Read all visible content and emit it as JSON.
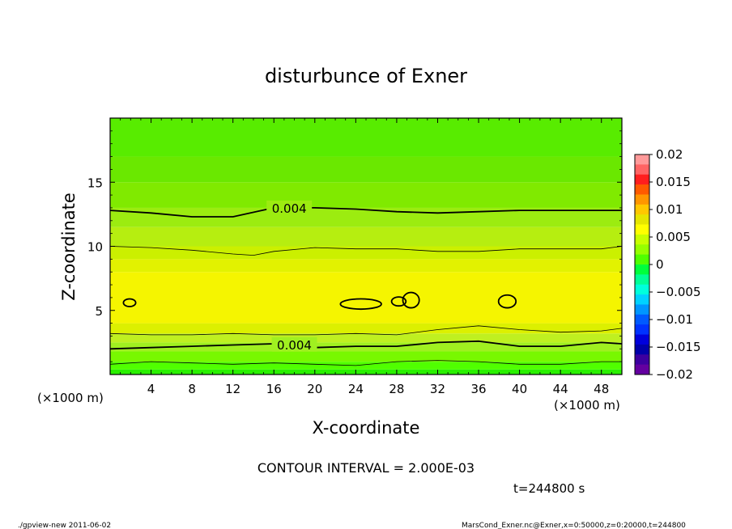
{
  "chart_data": {
    "type": "heatmap",
    "title": "disturbunce of Exner",
    "xlabel": "X-coordinate",
    "ylabel": "Z-coordinate",
    "x_unit": "(×1000 m)",
    "y_unit": "(×1000 m)",
    "xlim": [
      0,
      50
    ],
    "ylim": [
      0,
      20
    ],
    "x_ticks": [
      "4",
      "8",
      "12",
      "16",
      "20",
      "24",
      "28",
      "32",
      "36",
      "40",
      "44",
      "48"
    ],
    "y_ticks": [
      "5",
      "10",
      "15"
    ],
    "contour_labels": [
      "0.004",
      "0.004"
    ],
    "contour_interval_text": "CONTOUR INTERVAL = 2.000E-03",
    "time_text": "t=244800 s",
    "colorbar": {
      "ticks": [
        "0.02",
        "0.015",
        "0.01",
        "0.005",
        "0",
        "−0.005",
        "−0.01",
        "−0.015",
        "−0.02"
      ],
      "colors": [
        "#ff9a9a",
        "#ff6464",
        "#ff1e1e",
        "#ff5a00",
        "#ff9600",
        "#ffc800",
        "#e6e600",
        "#ffff00",
        "#c8ff00",
        "#96ff00",
        "#50ff00",
        "#00ff3c",
        "#00ff96",
        "#00ffdc",
        "#00d2ff",
        "#0096ff",
        "#005aff",
        "#0032ff",
        "#0000dc",
        "#0000aa",
        "#3c00a0",
        "#6400a0"
      ]
    },
    "bands": [
      {
        "z0": 0,
        "z1": 0.4,
        "color": "#2af000"
      },
      {
        "z0": 0.4,
        "z1": 1.0,
        "color": "#50ff00"
      },
      {
        "z0": 1.0,
        "z1": 1.8,
        "color": "#78f800"
      },
      {
        "z0": 1.8,
        "z1": 2.5,
        "color": "#a0f020"
      },
      {
        "z0": 2.5,
        "z1": 3.2,
        "color": "#bff020"
      },
      {
        "z0": 3.2,
        "z1": 4.0,
        "color": "#dcf000"
      },
      {
        "z0": 4.0,
        "z1": 8.0,
        "color": "#f5f500"
      },
      {
        "z0": 8.0,
        "z1": 9.0,
        "color": "#e2f200"
      },
      {
        "z0": 9.0,
        "z1": 10.0,
        "color": "#cbf000"
      },
      {
        "z0": 10.0,
        "z1": 11.5,
        "color": "#b6ee10"
      },
      {
        "z0": 11.5,
        "z1": 13.0,
        "color": "#9cec10"
      },
      {
        "z0": 13.0,
        "z1": 15.0,
        "color": "#80ea00"
      },
      {
        "z0": 15.0,
        "z1": 17.0,
        "color": "#6ae800"
      },
      {
        "z0": 17.0,
        "z1": 20.0,
        "color": "#58ec00"
      }
    ],
    "contour_lines": [
      {
        "points": [
          [
            0,
            12.8
          ],
          [
            4,
            12.6
          ],
          [
            8,
            12.3
          ],
          [
            12,
            12.3
          ],
          [
            16,
            13.0
          ],
          [
            20,
            13.0
          ],
          [
            24,
            12.9
          ],
          [
            28,
            12.7
          ],
          [
            32,
            12.6
          ],
          [
            36,
            12.7
          ],
          [
            40,
            12.8
          ],
          [
            44,
            12.8
          ],
          [
            48,
            12.8
          ],
          [
            50,
            12.8
          ]
        ],
        "weight": "bold"
      },
      {
        "points": [
          [
            0,
            10.0
          ],
          [
            4,
            9.9
          ],
          [
            8,
            9.7
          ],
          [
            12,
            9.4
          ],
          [
            14,
            9.3
          ],
          [
            16,
            9.6
          ],
          [
            20,
            9.9
          ],
          [
            24,
            9.8
          ],
          [
            28,
            9.8
          ],
          [
            32,
            9.6
          ],
          [
            36,
            9.6
          ],
          [
            40,
            9.8
          ],
          [
            44,
            9.8
          ],
          [
            48,
            9.8
          ],
          [
            50,
            10.0
          ]
        ],
        "weight": "thin"
      },
      {
        "points": [
          [
            0,
            3.2
          ],
          [
            4,
            3.1
          ],
          [
            8,
            3.1
          ],
          [
            12,
            3.2
          ],
          [
            16,
            3.1
          ],
          [
            20,
            3.1
          ],
          [
            24,
            3.2
          ],
          [
            28,
            3.1
          ],
          [
            32,
            3.5
          ],
          [
            36,
            3.8
          ],
          [
            40,
            3.5
          ],
          [
            44,
            3.3
          ],
          [
            48,
            3.4
          ],
          [
            50,
            3.6
          ]
        ],
        "weight": "thin"
      },
      {
        "points": [
          [
            0,
            2.0
          ],
          [
            4,
            2.1
          ],
          [
            8,
            2.2
          ],
          [
            12,
            2.3
          ],
          [
            16,
            2.4
          ],
          [
            20,
            2.1
          ],
          [
            24,
            2.2
          ],
          [
            28,
            2.2
          ],
          [
            32,
            2.5
          ],
          [
            36,
            2.6
          ],
          [
            40,
            2.2
          ],
          [
            44,
            2.2
          ],
          [
            48,
            2.5
          ],
          [
            50,
            2.4
          ]
        ],
        "weight": "bold"
      },
      {
        "points": [
          [
            0,
            0.8
          ],
          [
            4,
            1.0
          ],
          [
            8,
            0.9
          ],
          [
            12,
            0.8
          ],
          [
            16,
            0.9
          ],
          [
            20,
            0.8
          ],
          [
            24,
            0.7
          ],
          [
            28,
            1.0
          ],
          [
            32,
            1.1
          ],
          [
            36,
            1.0
          ],
          [
            40,
            0.8
          ],
          [
            44,
            0.8
          ],
          [
            48,
            1.0
          ],
          [
            50,
            1.0
          ]
        ],
        "weight": "thin"
      }
    ],
    "closed_contours": [
      {
        "cx": 1.9,
        "cz": 5.6,
        "rx": 0.6,
        "rz": 0.3
      },
      {
        "cx": 24.5,
        "cz": 5.5,
        "rx": 2.0,
        "rz": 0.4
      },
      {
        "cx": 28.2,
        "cz": 5.7,
        "rx": 0.7,
        "rz": 0.35
      },
      {
        "cx": 29.4,
        "cz": 5.8,
        "rx": 0.8,
        "rz": 0.6
      },
      {
        "cx": 38.8,
        "cz": 5.7,
        "rx": 0.85,
        "rz": 0.5
      }
    ],
    "grid": false
  },
  "footer": {
    "left": "./gpview-new   2011-06-02",
    "right": "MarsCond_Exner.nc@Exner,x=0:50000,z=0:20000,t=244800"
  }
}
